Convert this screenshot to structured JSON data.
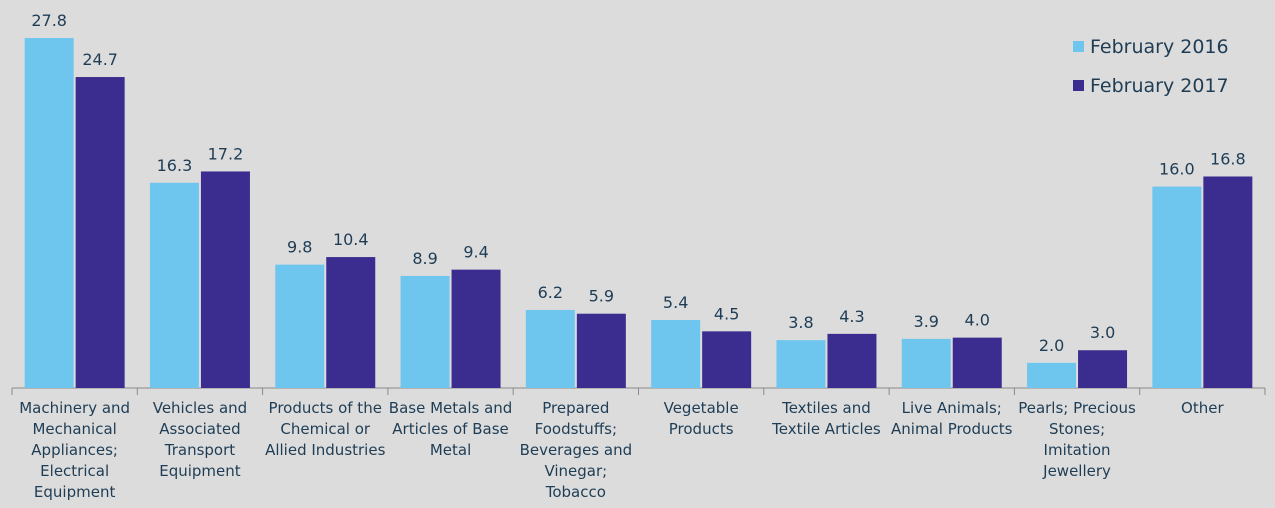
{
  "chart_data": {
    "type": "bar",
    "categories": [
      "Machinery and Mechanical Appliances; Electrical Equipment",
      "Vehicles and Associated Transport Equipment",
      "Products of the Chemical or Allied Industries",
      "Base Metals and Articles of Base Metal",
      "Prepared Foodstuffs; Beverages and Vinegar; Tobacco",
      "Vegetable Products",
      "Textiles and Textile Articles",
      "Live Animals; Animal Products",
      "Pearls; Precious Stones; Imitation Jewellery",
      "Other"
    ],
    "series": [
      {
        "name": "February 2016",
        "color": "#6ec6ee",
        "values": [
          27.8,
          16.3,
          9.8,
          8.9,
          6.2,
          5.4,
          3.8,
          3.9,
          2.0,
          16.0
        ],
        "value_labels": [
          "27.8",
          "16.3",
          "9.8",
          "8.9",
          "6.2",
          "5.4",
          "3.8",
          "3.9",
          "2.0",
          "16.0"
        ]
      },
      {
        "name": "February 2017",
        "color": "#3b2d8f",
        "values": [
          24.7,
          17.2,
          10.4,
          9.4,
          5.9,
          4.5,
          4.3,
          4.0,
          3.0,
          16.8
        ],
        "value_labels": [
          "24.7",
          "17.2",
          "10.4",
          "9.4",
          "5.9",
          "4.5",
          "4.3",
          "4.0",
          "3.0",
          "16.8"
        ]
      }
    ],
    "legend": "top-right"
  }
}
